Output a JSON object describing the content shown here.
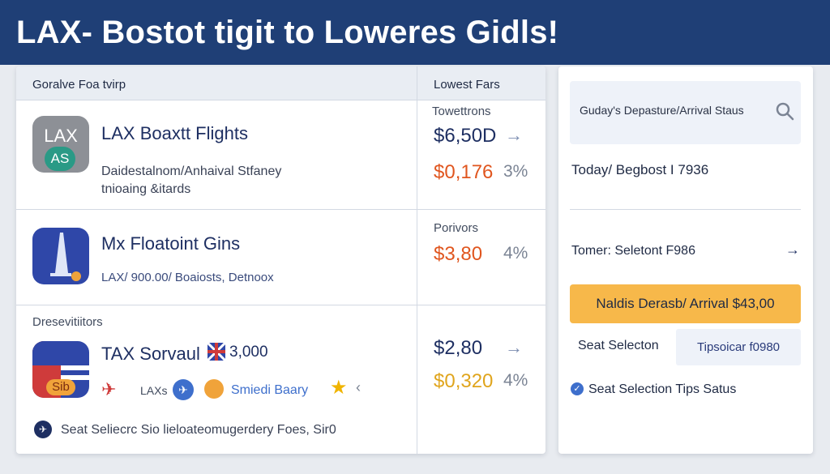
{
  "header": {
    "title": "LAX- Bostot tigit to Loweres Gidls!"
  },
  "main": {
    "left_header": "Goralve Foa tvirp",
    "right_header": "Lowest Fars",
    "right_label_1": "Towettrons",
    "right_label_2": "Porivors",
    "section_label": "Dresevitiitors",
    "flights": [
      {
        "title": "LAX Boaxtt Flights",
        "icon_text_top": "LAX",
        "icon_text_badge": "AS",
        "sub_line1": "Daidestalnom/Anhaival Stfaney",
        "sub_line2": "tnioaing &itards",
        "price_a": "$6,50D",
        "price_b": "$0,176",
        "pct_b": "3%"
      },
      {
        "title": "Mx Floatoint Gins",
        "sub_line": "LAX/ 900.00/ Boaiosts, Detnoox",
        "price_a": "$3,80",
        "pct_a": "4%"
      },
      {
        "title": "TAX Sorvaul",
        "title_value": "3,000",
        "icon_badge": "Sib",
        "airline_code": "LAXs",
        "airline_text": "Smiedi Baary",
        "price_a": "$2,80",
        "price_b": "$0,320",
        "pct_b": "4%"
      }
    ],
    "footer_text": "Seat Seliecrc Sio lieloateomugerdery Foes, Sir0"
  },
  "side": {
    "search_text": "Guday's Depasture/Arrival Staus",
    "today_text": "Today/ Begbost I 7936",
    "tomer_text": "Tomer: Seletont F986",
    "orange_button": "Naldis Derasb/ Arrival $43,00",
    "seat_label": "Seat Selecton",
    "tips_badge": "Tipsoicar f0980",
    "status_text": "Seat Selection Tips Satus"
  },
  "colors": {
    "header_bg": "#1f3f76",
    "price_blue": "#1e2f62",
    "price_orange": "#e0561f",
    "price_gold": "#e0a51d",
    "button_orange": "#f7b84a"
  }
}
